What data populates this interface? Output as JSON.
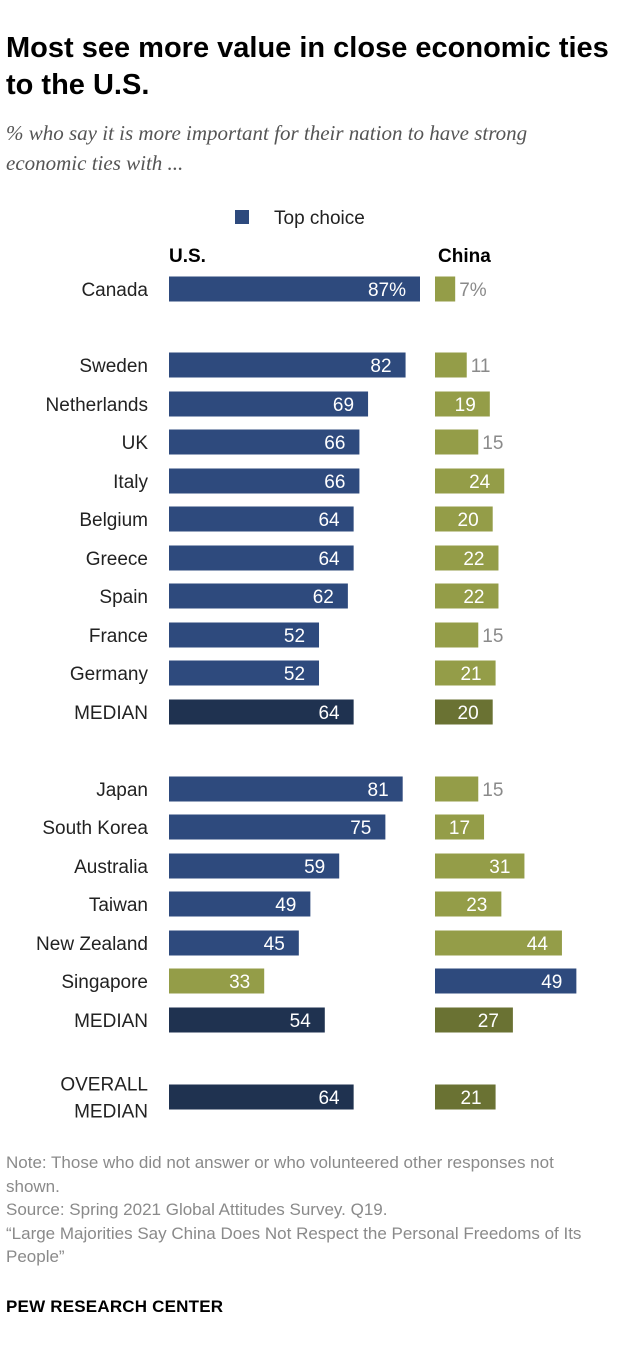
{
  "title": "Most see more value in close economic ties to the U.S.",
  "subtitle": "% who say it is more important for their nation to have strong economic ties with ...",
  "footer": {
    "note": "Note: Those who did not answer or who volunteered other responses not shown.",
    "source": "Source: Spring 2021 Global Attitudes Survey. Q19.",
    "report": "“Large Majorities Say China Does Not Respect the Personal Freedoms of Its People”",
    "brand": "PEW RESEARCH CENTER"
  },
  "colors": {
    "us": "#2e4a7d",
    "china": "#949d48",
    "median_us": "#1f3250",
    "median_china": "#6a7233",
    "label_dark": "#8a8a8a"
  },
  "chart_data": {
    "type": "bar",
    "orientation": "horizontal",
    "legend": {
      "label": "Top choice",
      "placement": "top"
    },
    "column_headers": [
      "U.S.",
      "China"
    ],
    "series": [
      {
        "name": "U.S."
      },
      {
        "name": "China"
      }
    ],
    "rows": [
      {
        "category": "Canada",
        "us": 87,
        "china": 7,
        "group": 0,
        "us_label": "87%",
        "china_label": "7%"
      },
      {
        "category": "Sweden",
        "us": 82,
        "china": 11,
        "group": 1
      },
      {
        "category": "Netherlands",
        "us": 69,
        "china": 19,
        "group": 1
      },
      {
        "category": "UK",
        "us": 66,
        "china": 15,
        "group": 1
      },
      {
        "category": "Italy",
        "us": 66,
        "china": 24,
        "group": 1
      },
      {
        "category": "Belgium",
        "us": 64,
        "china": 20,
        "group": 1
      },
      {
        "category": "Greece",
        "us": 64,
        "china": 22,
        "group": 1
      },
      {
        "category": "Spain",
        "us": 62,
        "china": 22,
        "group": 1
      },
      {
        "category": "France",
        "us": 52,
        "china": 15,
        "group": 1
      },
      {
        "category": "Germany",
        "us": 52,
        "china": 21,
        "group": 1
      },
      {
        "category": "MEDIAN",
        "us": 64,
        "china": 20,
        "group": 1,
        "median": true
      },
      {
        "category": "Japan",
        "us": 81,
        "china": 15,
        "group": 2
      },
      {
        "category": "South Korea",
        "us": 75,
        "china": 17,
        "group": 2
      },
      {
        "category": "Australia",
        "us": 59,
        "china": 31,
        "group": 2
      },
      {
        "category": "Taiwan",
        "us": 49,
        "china": 23,
        "group": 2
      },
      {
        "category": "New Zealand",
        "us": 45,
        "china": 44,
        "group": 2
      },
      {
        "category": "Singapore",
        "us": 33,
        "china": 49,
        "group": 2,
        "top_choice": "China"
      },
      {
        "category": "MEDIAN",
        "us": 54,
        "china": 27,
        "group": 2,
        "median": true
      },
      {
        "category": "OVERALL MEDIAN",
        "us": 64,
        "china": 21,
        "group": 3,
        "median": true
      }
    ]
  }
}
